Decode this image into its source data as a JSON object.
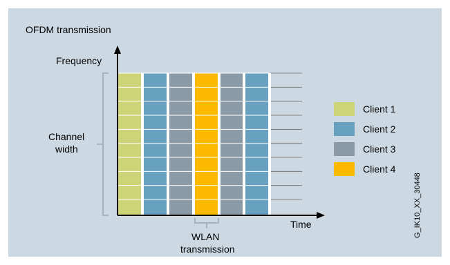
{
  "title": "OFDM transmission",
  "axis": {
    "y_label": "Frequency",
    "x_label": "Time"
  },
  "brace_label": [
    "Channel",
    "width"
  ],
  "bottom_label": [
    "WLAN",
    "transmission"
  ],
  "colors": {
    "client1": "#cdd377",
    "client2": "#67a1bf",
    "client3": "#8b9aa7",
    "client4": "#fbb900",
    "background": "#cdd9e2"
  },
  "bars": [
    "client1",
    "client2",
    "client3",
    "client4",
    "client3",
    "client2"
  ],
  "legend": [
    {
      "label": "Client 1",
      "color": "#cdd377"
    },
    {
      "label": "Client 2",
      "color": "#67a1bf"
    },
    {
      "label": "Client 3",
      "color": "#8b9aa7"
    },
    {
      "label": "Client 4",
      "color": "#fbb900"
    }
  ],
  "image_code": "G_IK10_XX_30448"
}
